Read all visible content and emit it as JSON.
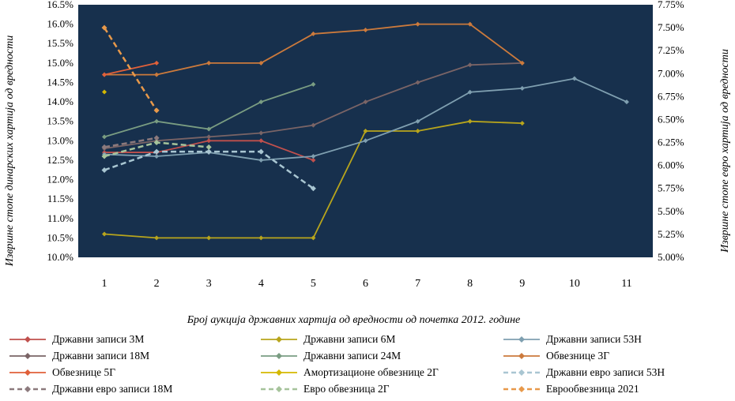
{
  "chart_data": {
    "type": "line",
    "title": "",
    "xlabel": "Број аукција државних хартија од вредности од почетка 2012. године",
    "ylabel_left": "Извршне стопе динарских хартија од вредности",
    "ylabel_right": "Извршне стопе евро хартија од вредности",
    "x": [
      1,
      2,
      3,
      4,
      5,
      6,
      7,
      8,
      9,
      10,
      11
    ],
    "x_tick_labels": [
      "1",
      "2",
      "3",
      "4",
      "5",
      "6",
      "7",
      "8",
      "9",
      "10",
      "11"
    ],
    "ylim_left": [
      10.0,
      16.5
    ],
    "ylim_right": [
      5.0,
      7.75
    ],
    "y_ticks_left": [
      "10.0%",
      "10.5%",
      "11.0%",
      "11.5%",
      "12.0%",
      "12.5%",
      "13.0%",
      "13.5%",
      "14.0%",
      "14.5%",
      "15.0%",
      "15.5%",
      "16.0%",
      "16.5%"
    ],
    "y_ticks_right": [
      "5.00%",
      "5.25%",
      "5.50%",
      "5.75%",
      "6.00%",
      "6.25%",
      "6.50%",
      "6.75%",
      "7.00%",
      "7.25%",
      "7.50%",
      "7.75%"
    ],
    "grid": false,
    "plot_background": "#17304d",
    "legend_position": "bottom",
    "series": [
      {
        "name": "Државни записи 3М",
        "axis": "left",
        "color": "#c0504d",
        "dash": false,
        "x": [
          1,
          2,
          3,
          4,
          5
        ],
        "values": [
          12.7,
          12.7,
          13.0,
          13.0,
          12.5
        ]
      },
      {
        "name": "Државни записи 6М",
        "axis": "left",
        "color": "#b8a51c",
        "dash": false,
        "x": [
          1,
          2,
          3,
          4,
          5,
          6,
          7,
          8,
          9
        ],
        "values": [
          10.6,
          10.5,
          10.5,
          10.5,
          10.5,
          13.25,
          13.25,
          13.5,
          13.45
        ]
      },
      {
        "name": "Државни записи 53Н",
        "axis": "left",
        "color": "#7f9fb0",
        "dash": false,
        "x": [
          1,
          2,
          3,
          4,
          5,
          6,
          7,
          8,
          9,
          10,
          11
        ],
        "values": [
          12.65,
          12.6,
          12.7,
          12.5,
          12.6,
          13.0,
          13.5,
          14.25,
          14.35,
          14.6,
          14.0
        ]
      },
      {
        "name": "Државни записи 18М",
        "axis": "left",
        "color": "#7a6466",
        "dash": false,
        "x": [
          1,
          2,
          3,
          4,
          5,
          6,
          7,
          8,
          9
        ],
        "values": [
          12.8,
          13.0,
          13.1,
          13.2,
          13.4,
          14.0,
          14.5,
          14.95,
          15.0
        ]
      },
      {
        "name": "Државни записи 24М",
        "axis": "left",
        "color": "#7a9d82",
        "dash": false,
        "x": [
          1,
          2,
          3,
          4,
          5
        ],
        "values": [
          13.1,
          13.5,
          13.3,
          14.0,
          14.45
        ]
      },
      {
        "name": "Обвезнице 3Г",
        "axis": "left",
        "color": "#cc7a3c",
        "dash": false,
        "x": [
          1,
          2,
          3,
          4,
          5,
          6,
          7,
          8,
          9
        ],
        "values": [
          14.7,
          14.7,
          15.0,
          15.0,
          15.75,
          15.85,
          16.0,
          16.0,
          15.0
        ]
      },
      {
        "name": "Обвезнице 5Г",
        "axis": "left",
        "color": "#e0603a",
        "dash": false,
        "x": [
          1,
          2
        ],
        "values": [
          14.7,
          15.0
        ]
      },
      {
        "name": "Амортизационе обвезнице 2Г",
        "axis": "right",
        "color": "#d4b800",
        "dash": false,
        "x": [
          1
        ],
        "values": [
          6.8
        ]
      },
      {
        "name": "Државни евро записи 53Н",
        "axis": "right",
        "color": "#a9c6d2",
        "dash": true,
        "x": [
          1,
          2,
          3,
          4,
          5
        ],
        "values": [
          5.95,
          6.15,
          6.15,
          6.15,
          5.75
        ]
      },
      {
        "name": "Државни евро записи 18М",
        "axis": "right",
        "color": "#8c7a7d",
        "dash": true,
        "x": [
          1,
          2
        ],
        "values": [
          6.2,
          6.3
        ]
      },
      {
        "name": "Евро обвезница 2Г",
        "axis": "right",
        "color": "#a6c39b",
        "dash": true,
        "x": [
          1,
          2,
          3
        ],
        "values": [
          6.1,
          6.25,
          6.2
        ]
      },
      {
        "name": "Еврообвезница 2021",
        "axis": "right",
        "color": "#e8994a",
        "dash": true,
        "x": [
          1,
          2
        ],
        "values": [
          7.5,
          6.6
        ]
      }
    ]
  }
}
